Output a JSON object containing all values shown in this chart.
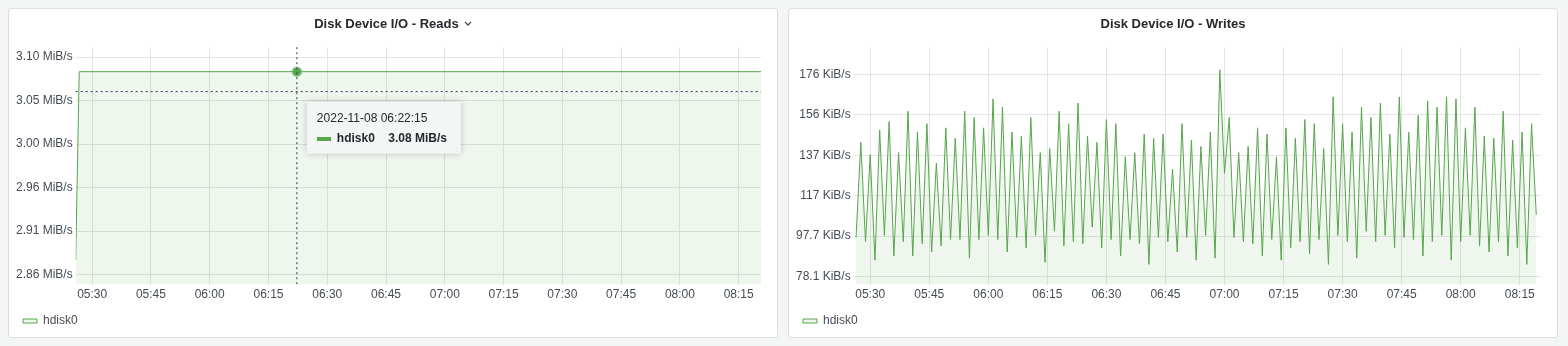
{
  "chart_data": [
    {
      "type": "area",
      "title": "Disk Device I/O - Reads",
      "xlim": [
        5.43,
        8.345
      ],
      "ylim": [
        2.849,
        3.111
      ],
      "xticks": [
        {
          "value": 5.5,
          "label": "05:30"
        },
        {
          "value": 5.75,
          "label": "05:45"
        },
        {
          "value": 6,
          "label": "06:00"
        },
        {
          "value": 6.25,
          "label": "06:15"
        },
        {
          "value": 6.5,
          "label": "06:30"
        },
        {
          "value": 6.75,
          "label": "06:45"
        },
        {
          "value": 7,
          "label": "07:00"
        },
        {
          "value": 7.25,
          "label": "07:15"
        },
        {
          "value": 7.5,
          "label": "07:30"
        },
        {
          "value": 7.75,
          "label": "07:45"
        },
        {
          "value": 8,
          "label": "08:00"
        },
        {
          "value": 8.25,
          "label": "08:15"
        }
      ],
      "yticks": [
        {
          "value": 2.86,
          "label": "2.86 MiB/s"
        },
        {
          "value": 2.908,
          "label": "2.91 MiB/s"
        },
        {
          "value": 2.956,
          "label": "2.96 MiB/s"
        },
        {
          "value": 3.004,
          "label": "3.00 MiB/s"
        },
        {
          "value": 3.052,
          "label": "3.05 MiB/s"
        },
        {
          "value": 3.1,
          "label": "3.10 MiB/s"
        }
      ],
      "grid": true,
      "legend": "bottom left",
      "series": [
        {
          "name": "hdisk0",
          "color": "#56a64b",
          "x": [
            5.43,
            5.445,
            8.345
          ],
          "values": [
            2.876,
            3.084,
            3.084
          ]
        },
        {
          "type": "scatter",
          "color": "#56a64b",
          "marker": "circle",
          "x": [
            6.3708
          ],
          "values": [
            3.084
          ]
        }
      ],
      "ref_lines": [
        {
          "axis": "x",
          "value": 6.3708,
          "color": "#1f3d5a",
          "line_style": "dotted"
        },
        {
          "axis": "y",
          "value": 3.062,
          "color": "#1f3d5a",
          "line_style": "dotted"
        }
      ],
      "annotations": [
        "2022-11-08 06:22:15",
        "hdisk0    3.08 MiB/s"
      ]
    },
    {
      "type": "area",
      "title": "Disk Device I/O - Writes",
      "xlim": [
        5.43,
        8.34
      ],
      "ylim": [
        74.2,
        189
      ],
      "xticks": [
        {
          "value": 5.5,
          "label": "05:30"
        },
        {
          "value": 5.75,
          "label": "05:45"
        },
        {
          "value": 6,
          "label": "06:00"
        },
        {
          "value": 6.25,
          "label": "06:15"
        },
        {
          "value": 6.5,
          "label": "06:30"
        },
        {
          "value": 6.75,
          "label": "06:45"
        },
        {
          "value": 7,
          "label": "07:00"
        },
        {
          "value": 7.25,
          "label": "07:15"
        },
        {
          "value": 7.5,
          "label": "07:30"
        },
        {
          "value": 7.75,
          "label": "07:45"
        },
        {
          "value": 8,
          "label": "08:00"
        },
        {
          "value": 8.25,
          "label": "08:15"
        }
      ],
      "yticks": [
        {
          "value": 78.1,
          "label": "78.1 KiB/s"
        },
        {
          "value": 97.66,
          "label": "97.7 KiB/s"
        },
        {
          "value": 117.19,
          "label": "117 KiB/s"
        },
        {
          "value": 136.72,
          "label": "137 KiB/s"
        },
        {
          "value": 156.25,
          "label": "156 KiB/s"
        },
        {
          "value": 175.78,
          "label": "176 KiB/s"
        }
      ],
      "grid": true,
      "legend": "bottom left",
      "series": [
        {
          "name": "hdisk0",
          "color": "#56a64b",
          "x": [
            5.44,
            5.46,
            5.48,
            5.5,
            5.52,
            5.54,
            5.56,
            5.58,
            5.6,
            5.62,
            5.64,
            5.66,
            5.68,
            5.7,
            5.72,
            5.74,
            5.76,
            5.78,
            5.8,
            5.82,
            5.84,
            5.86,
            5.88,
            5.9,
            5.92,
            5.94,
            5.96,
            5.98,
            6,
            6.02,
            6.04,
            6.06,
            6.08,
            6.1,
            6.12,
            6.14,
            6.16,
            6.18,
            6.2,
            6.22,
            6.24,
            6.26,
            6.28,
            6.3,
            6.32,
            6.34,
            6.36,
            6.38,
            6.4,
            6.42,
            6.44,
            6.46,
            6.48,
            6.5,
            6.52,
            6.54,
            6.56,
            6.58,
            6.6,
            6.62,
            6.64,
            6.66,
            6.68,
            6.7,
            6.72,
            6.74,
            6.76,
            6.78,
            6.8,
            6.82,
            6.84,
            6.86,
            6.88,
            6.9,
            6.92,
            6.94,
            6.96,
            6.98,
            7,
            7.02,
            7.04,
            7.06,
            7.08,
            7.1,
            7.12,
            7.14,
            7.16,
            7.18,
            7.2,
            7.22,
            7.24,
            7.26,
            7.28,
            7.3,
            7.32,
            7.34,
            7.36,
            7.38,
            7.4,
            7.42,
            7.44,
            7.46,
            7.48,
            7.5,
            7.52,
            7.54,
            7.56,
            7.58,
            7.6,
            7.62,
            7.64,
            7.66,
            7.68,
            7.7,
            7.72,
            7.74,
            7.76,
            7.78,
            7.8,
            7.82,
            7.84,
            7.86,
            7.88,
            7.9,
            7.92,
            7.94,
            7.96,
            7.98,
            8,
            8.02,
            8.04,
            8.06,
            8.08,
            8.1,
            8.12,
            8.14,
            8.16,
            8.18,
            8.2,
            8.22,
            8.24,
            8.26,
            8.28,
            8.3,
            8.32
          ],
          "values": [
            97,
            143,
            95,
            137,
            86,
            149,
            98,
            153,
            88,
            138,
            95,
            158,
            88,
            148,
            94,
            152,
            90,
            133,
            93,
            150,
            96,
            145,
            96,
            158,
            87,
            155,
            96,
            150,
            98,
            164,
            96,
            160,
            90,
            148,
            97,
            146,
            92,
            155,
            98,
            138,
            85,
            140,
            100,
            158,
            93,
            152,
            95,
            162,
            94,
            146,
            102,
            143,
            92,
            154,
            96,
            152,
            88,
            136,
            96,
            138,
            94,
            147,
            84,
            145,
            97,
            147,
            95,
            130,
            90,
            152,
            97,
            144,
            86,
            141,
            98,
            148,
            87,
            178,
            128,
            155,
            97,
            138,
            95,
            141,
            94,
            150,
            88,
            147,
            96,
            136,
            86,
            150,
            92,
            145,
            95,
            154,
            89,
            152,
            96,
            140,
            84,
            165,
            98,
            152,
            95,
            148,
            87,
            160,
            100,
            155,
            95,
            162,
            98,
            147,
            92,
            165,
            97,
            148,
            96,
            156,
            88,
            163,
            95,
            160,
            98,
            165,
            86,
            164,
            95,
            150,
            98,
            160,
            93,
            146,
            90,
            145,
            95,
            158,
            88,
            144,
            92,
            148,
            84,
            152,
            108
          ]
        }
      ]
    }
  ]
}
